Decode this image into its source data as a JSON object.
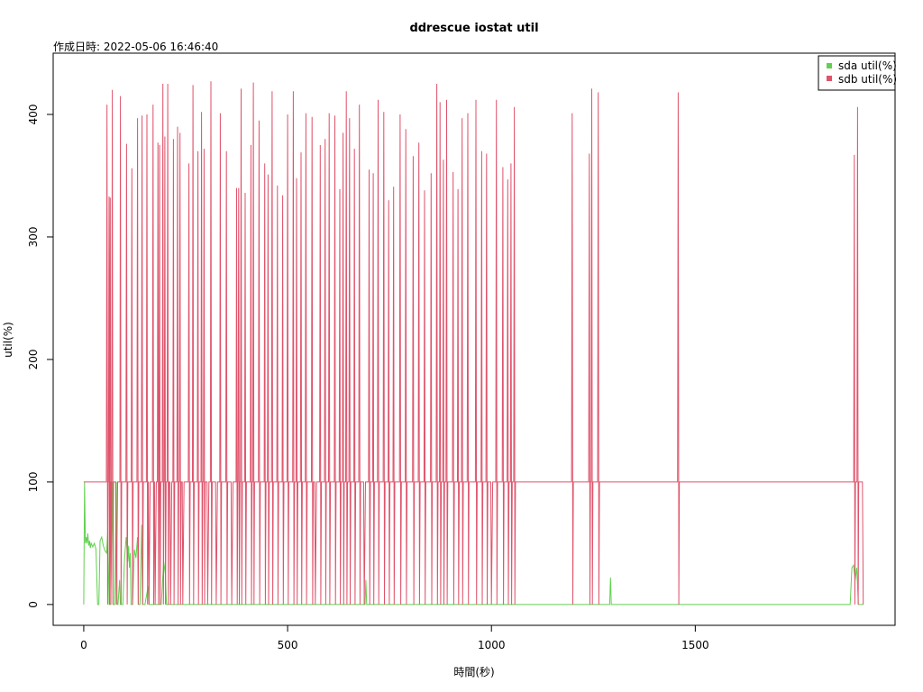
{
  "chart_data": {
    "type": "line",
    "title": "ddrescue iostat util",
    "subtitle": "作成日時: 2022-05-06 16:46:40",
    "xlabel": "時間(秒)",
    "ylabel": "util(%)",
    "xlim": [
      -75,
      1990
    ],
    "ylim": [
      -17,
      450
    ],
    "xticks": [
      0,
      500,
      1000,
      1500
    ],
    "yticks": [
      0,
      100,
      200,
      300,
      400
    ],
    "grid": false,
    "legend_position": "top-right",
    "series": [
      {
        "name": "sda util(%)",
        "color": "#61D04F",
        "points": [
          [
            0,
            0
          ],
          [
            2,
            100
          ],
          [
            4,
            50
          ],
          [
            6,
            55
          ],
          [
            8,
            50
          ],
          [
            10,
            58
          ],
          [
            12,
            48
          ],
          [
            14,
            52
          ],
          [
            16,
            46
          ],
          [
            18,
            50
          ],
          [
            22,
            47
          ],
          [
            26,
            50
          ],
          [
            30,
            45
          ],
          [
            34,
            0
          ],
          [
            37,
            0
          ],
          [
            40,
            52
          ],
          [
            44,
            55
          ],
          [
            48,
            48
          ],
          [
            52,
            44
          ],
          [
            56,
            42
          ],
          [
            59,
            60
          ],
          [
            62,
            0
          ],
          [
            66,
            0
          ],
          [
            70,
            100
          ],
          [
            72,
            0
          ],
          [
            76,
            0
          ],
          [
            80,
            100
          ],
          [
            82,
            0
          ],
          [
            84,
            0
          ],
          [
            88,
            20
          ],
          [
            90,
            0
          ],
          [
            96,
            0
          ],
          [
            100,
            38
          ],
          [
            104,
            55
          ],
          [
            108,
            35
          ],
          [
            110,
            48
          ],
          [
            112,
            30
          ],
          [
            114,
            42
          ],
          [
            116,
            0
          ],
          [
            120,
            0
          ],
          [
            124,
            45
          ],
          [
            128,
            38
          ],
          [
            132,
            55
          ],
          [
            134,
            0
          ],
          [
            138,
            0
          ],
          [
            142,
            65
          ],
          [
            144,
            0
          ],
          [
            150,
            0
          ],
          [
            158,
            15
          ],
          [
            160,
            0
          ],
          [
            190,
            0
          ],
          [
            196,
            35
          ],
          [
            200,
            25
          ],
          [
            203,
            0
          ],
          [
            210,
            0
          ],
          [
            690,
            0
          ],
          [
            692,
            20
          ],
          [
            694,
            0
          ],
          [
            1290,
            0
          ],
          [
            1292,
            22
          ],
          [
            1294,
            0
          ],
          [
            1880,
            0
          ],
          [
            1884,
            30
          ],
          [
            1888,
            32
          ],
          [
            1892,
            20
          ],
          [
            1896,
            30
          ],
          [
            1900,
            0
          ],
          [
            1912,
            0
          ]
        ]
      },
      {
        "name": "sdb util(%)",
        "color": "#DF536B",
        "base": 100,
        "spikes": [
          [
            57,
            408
          ],
          [
            62,
            333
          ],
          [
            65,
            332
          ],
          [
            70,
            420
          ],
          [
            80,
            0
          ],
          [
            90,
            415
          ],
          [
            105,
            376
          ],
          [
            118,
            356
          ],
          [
            132,
            397
          ],
          [
            143,
            399
          ],
          [
            155,
            400
          ],
          [
            160,
            0
          ],
          [
            170,
            408
          ],
          [
            175,
            0
          ],
          [
            182,
            377
          ],
          [
            186,
            375
          ],
          [
            194,
            425
          ],
          [
            199,
            382
          ],
          [
            206,
            425
          ],
          [
            213,
            0
          ],
          [
            220,
            380
          ],
          [
            230,
            390
          ],
          [
            236,
            385
          ],
          [
            243,
            0
          ],
          [
            258,
            360
          ],
          [
            268,
            424
          ],
          [
            280,
            370
          ],
          [
            289,
            402
          ],
          [
            295,
            372
          ],
          [
            304,
            0
          ],
          [
            312,
            427
          ],
          [
            325,
            0
          ],
          [
            335,
            401
          ],
          [
            350,
            370
          ],
          [
            363,
            0
          ],
          [
            375,
            340
          ],
          [
            380,
            340
          ],
          [
            386,
            421
          ],
          [
            396,
            336
          ],
          [
            410,
            375
          ],
          [
            416,
            426
          ],
          [
            430,
            395
          ],
          [
            444,
            360
          ],
          [
            452,
            351
          ],
          [
            462,
            419
          ],
          [
            475,
            342
          ],
          [
            488,
            334
          ],
          [
            500,
            400
          ],
          [
            514,
            419
          ],
          [
            522,
            348
          ],
          [
            533,
            369
          ],
          [
            545,
            401
          ],
          [
            560,
            398
          ],
          [
            568,
            0
          ],
          [
            580,
            375
          ],
          [
            592,
            380
          ],
          [
            602,
            401
          ],
          [
            616,
            399
          ],
          [
            628,
            339
          ],
          [
            636,
            385
          ],
          [
            644,
            419
          ],
          [
            652,
            397
          ],
          [
            664,
            372
          ],
          [
            676,
            408
          ],
          [
            688,
            0
          ],
          [
            700,
            355
          ],
          [
            710,
            352
          ],
          [
            722,
            412
          ],
          [
            736,
            402
          ],
          [
            748,
            330
          ],
          [
            760,
            341
          ],
          [
            776,
            400
          ],
          [
            790,
            388
          ],
          [
            808,
            366
          ],
          [
            822,
            377
          ],
          [
            836,
            338
          ],
          [
            852,
            352
          ],
          [
            866,
            425
          ],
          [
            874,
            410
          ],
          [
            882,
            363
          ],
          [
            890,
            412
          ],
          [
            906,
            353
          ],
          [
            918,
            339
          ],
          [
            928,
            397
          ],
          [
            942,
            401
          ],
          [
            962,
            412
          ],
          [
            976,
            370
          ],
          [
            988,
            368
          ],
          [
            1000,
            0
          ],
          [
            1012,
            412
          ],
          [
            1028,
            357
          ],
          [
            1040,
            347
          ],
          [
            1048,
            360
          ],
          [
            1056,
            406
          ],
          [
            1198,
            401
          ],
          [
            1240,
            368
          ],
          [
            1246,
            421
          ],
          [
            1262,
            418
          ],
          [
            1458,
            418
          ],
          [
            1890,
            367
          ],
          [
            1898,
            406
          ]
        ]
      }
    ]
  }
}
